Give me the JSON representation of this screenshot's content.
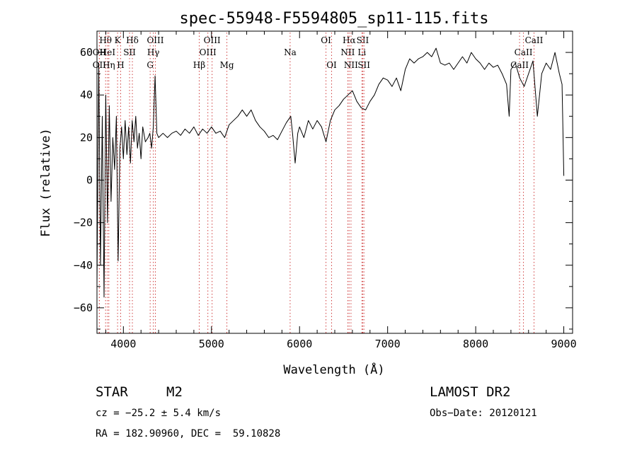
{
  "chart_data": {
    "type": "line",
    "title": "spec-55948-F5594805_sp11-115.fits",
    "xlabel": "Wavelength (Å)",
    "ylabel": "Flux (relative)",
    "xlim": [
      3700,
      9100
    ],
    "ylim": [
      -72,
      70
    ],
    "x_ticks": [
      4000,
      5000,
      6000,
      7000,
      8000,
      9000
    ],
    "y_ticks": [
      -60,
      -40,
      -20,
      0,
      20,
      40,
      60
    ],
    "grid": false,
    "series": [
      {
        "color": "#000000",
        "points": [
          [
            3700,
            -50
          ],
          [
            3720,
            55
          ],
          [
            3740,
            -40
          ],
          [
            3760,
            30
          ],
          [
            3780,
            -55
          ],
          [
            3800,
            40
          ],
          [
            3820,
            -20
          ],
          [
            3840,
            35
          ],
          [
            3860,
            -10
          ],
          [
            3880,
            20
          ],
          [
            3900,
            5
          ],
          [
            3920,
            30
          ],
          [
            3940,
            -38
          ],
          [
            3960,
            15
          ],
          [
            3980,
            25
          ],
          [
            4000,
            10
          ],
          [
            4020,
            28
          ],
          [
            4040,
            12
          ],
          [
            4060,
            25
          ],
          [
            4080,
            8
          ],
          [
            4100,
            28
          ],
          [
            4120,
            18
          ],
          [
            4140,
            30
          ],
          [
            4160,
            15
          ],
          [
            4180,
            22
          ],
          [
            4200,
            10
          ],
          [
            4220,
            25
          ],
          [
            4250,
            18
          ],
          [
            4280,
            20
          ],
          [
            4300,
            22
          ],
          [
            4320,
            15
          ],
          [
            4340,
            25
          ],
          [
            4360,
            49
          ],
          [
            4380,
            22
          ],
          [
            4400,
            20
          ],
          [
            4450,
            22
          ],
          [
            4500,
            20
          ],
          [
            4550,
            22
          ],
          [
            4600,
            23
          ],
          [
            4650,
            21
          ],
          [
            4700,
            24
          ],
          [
            4750,
            22
          ],
          [
            4800,
            25
          ],
          [
            4850,
            21
          ],
          [
            4900,
            24
          ],
          [
            4950,
            22
          ],
          [
            5000,
            25
          ],
          [
            5050,
            22
          ],
          [
            5100,
            23
          ],
          [
            5150,
            20
          ],
          [
            5200,
            26
          ],
          [
            5250,
            28
          ],
          [
            5300,
            30
          ],
          [
            5350,
            33
          ],
          [
            5400,
            30
          ],
          [
            5450,
            33
          ],
          [
            5500,
            28
          ],
          [
            5550,
            25
          ],
          [
            5600,
            23
          ],
          [
            5650,
            20
          ],
          [
            5700,
            21
          ],
          [
            5750,
            19
          ],
          [
            5800,
            23
          ],
          [
            5850,
            27
          ],
          [
            5900,
            30
          ],
          [
            5920,
            22
          ],
          [
            5950,
            8
          ],
          [
            5980,
            22
          ],
          [
            6000,
            25
          ],
          [
            6050,
            20
          ],
          [
            6100,
            28
          ],
          [
            6150,
            24
          ],
          [
            6200,
            28
          ],
          [
            6250,
            25
          ],
          [
            6300,
            18
          ],
          [
            6350,
            28
          ],
          [
            6400,
            33
          ],
          [
            6450,
            35
          ],
          [
            6500,
            38
          ],
          [
            6550,
            40
          ],
          [
            6600,
            42
          ],
          [
            6650,
            37
          ],
          [
            6700,
            34
          ],
          [
            6750,
            33
          ],
          [
            6800,
            37
          ],
          [
            6850,
            40
          ],
          [
            6900,
            45
          ],
          [
            6950,
            48
          ],
          [
            7000,
            47
          ],
          [
            7050,
            44
          ],
          [
            7100,
            48
          ],
          [
            7150,
            42
          ],
          [
            7200,
            52
          ],
          [
            7250,
            57
          ],
          [
            7300,
            55
          ],
          [
            7350,
            57
          ],
          [
            7400,
            58
          ],
          [
            7450,
            60
          ],
          [
            7500,
            58
          ],
          [
            7550,
            62
          ],
          [
            7600,
            55
          ],
          [
            7650,
            54
          ],
          [
            7700,
            55
          ],
          [
            7750,
            52
          ],
          [
            7800,
            55
          ],
          [
            7850,
            58
          ],
          [
            7900,
            55
          ],
          [
            7950,
            60
          ],
          [
            8000,
            57
          ],
          [
            8050,
            55
          ],
          [
            8100,
            52
          ],
          [
            8150,
            55
          ],
          [
            8200,
            53
          ],
          [
            8250,
            54
          ],
          [
            8300,
            50
          ],
          [
            8350,
            45
          ],
          [
            8380,
            30
          ],
          [
            8400,
            52
          ],
          [
            8450,
            55
          ],
          [
            8500,
            48
          ],
          [
            8550,
            44
          ],
          [
            8600,
            50
          ],
          [
            8650,
            56
          ],
          [
            8700,
            30
          ],
          [
            8750,
            50
          ],
          [
            8800,
            55
          ],
          [
            8850,
            52
          ],
          [
            8900,
            60
          ],
          [
            8950,
            50
          ],
          [
            8980,
            45
          ],
          [
            9000,
            2
          ]
        ]
      }
    ],
    "lines": [
      {
        "label": "OII",
        "row": 2,
        "x": 3727
      },
      {
        "label": "Hθ",
        "row": 0,
        "x": 3798
      },
      {
        "label": "OII",
        "row": 1,
        "x": 3727
      },
      {
        "label": "HeI",
        "row": 1,
        "x": 3820
      },
      {
        "label": "Hη",
        "row": 2,
        "x": 3835
      },
      {
        "label": "K",
        "row": 0,
        "x": 3934
      },
      {
        "label": "H",
        "row": 2,
        "x": 3969
      },
      {
        "label": "SII",
        "row": 1,
        "x": 4070
      },
      {
        "label": "Hδ",
        "row": 0,
        "x": 4102
      },
      {
        "label": "OIII",
        "row": 0,
        "x": 4363
      },
      {
        "label": "Hγ",
        "row": 1,
        "x": 4340
      },
      {
        "label": "G",
        "row": 2,
        "x": 4304
      },
      {
        "label": "Hβ",
        "row": 2,
        "x": 4861
      },
      {
        "label": "OIII",
        "row": 0,
        "x": 5007
      },
      {
        "label": "OIII",
        "row": 1,
        "x": 4959
      },
      {
        "label": "Mg",
        "row": 2,
        "x": 5175
      },
      {
        "label": "Na",
        "row": 1,
        "x": 5893
      },
      {
        "label": "OI",
        "row": 0,
        "x": 6300
      },
      {
        "label": "OI",
        "row": 2,
        "x": 6364
      },
      {
        "label": "Hα",
        "row": 0,
        "x": 6563
      },
      {
        "label": "SII",
        "row": 0,
        "x": 6717
      },
      {
        "label": "NII",
        "row": 1,
        "x": 6548
      },
      {
        "label": "Li",
        "row": 1,
        "x": 6708
      },
      {
        "label": "NII",
        "row": 2,
        "x": 6584
      },
      {
        "label": "SII",
        "row": 2,
        "x": 6731
      },
      {
        "label": "CaII",
        "row": 0,
        "x": 8662
      },
      {
        "label": "CaII",
        "row": 1,
        "x": 8542
      },
      {
        "label": "CaII",
        "row": 2,
        "x": 8498
      }
    ]
  },
  "info": {
    "object_type": "STAR",
    "subclass": "M2",
    "survey": "LAMOST DR2",
    "cz": "cz = −25.2 ± 5.4 km/s",
    "obs_date": "Obs−Date: 20120121",
    "coords": "RA = 182.90960, DEC =  59.10828"
  }
}
